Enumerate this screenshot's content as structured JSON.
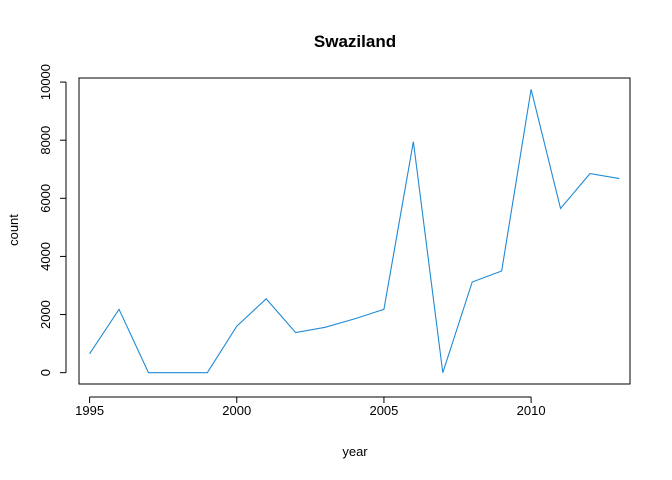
{
  "chart_data": {
    "type": "line",
    "title": "Swaziland",
    "xlabel": "year",
    "ylabel": "count",
    "x": [
      1995,
      1996,
      1997,
      1998,
      1999,
      2000,
      2001,
      2002,
      2003,
      2004,
      2005,
      2006,
      2007,
      2008,
      2009,
      2010,
      2011,
      2012,
      2013
    ],
    "series": [
      {
        "values": [
          650,
          2180,
          0,
          0,
          0,
          1600,
          2540,
          1380,
          1560,
          1850,
          2180,
          7950,
          0,
          3120,
          3500,
          9750,
          5650,
          6850,
          6680
        ],
        "color": "#1f8ad6"
      }
    ],
    "xlim": [
      1994.64,
      2013.36
    ],
    "ylim": [
      -390,
      10140
    ],
    "x_ticks": [
      "1995",
      "2000",
      "2005",
      "2010"
    ],
    "y_ticks": [
      "0",
      "2000",
      "4000",
      "6000",
      "8000",
      "10000"
    ],
    "grid": false,
    "legend": "none"
  }
}
